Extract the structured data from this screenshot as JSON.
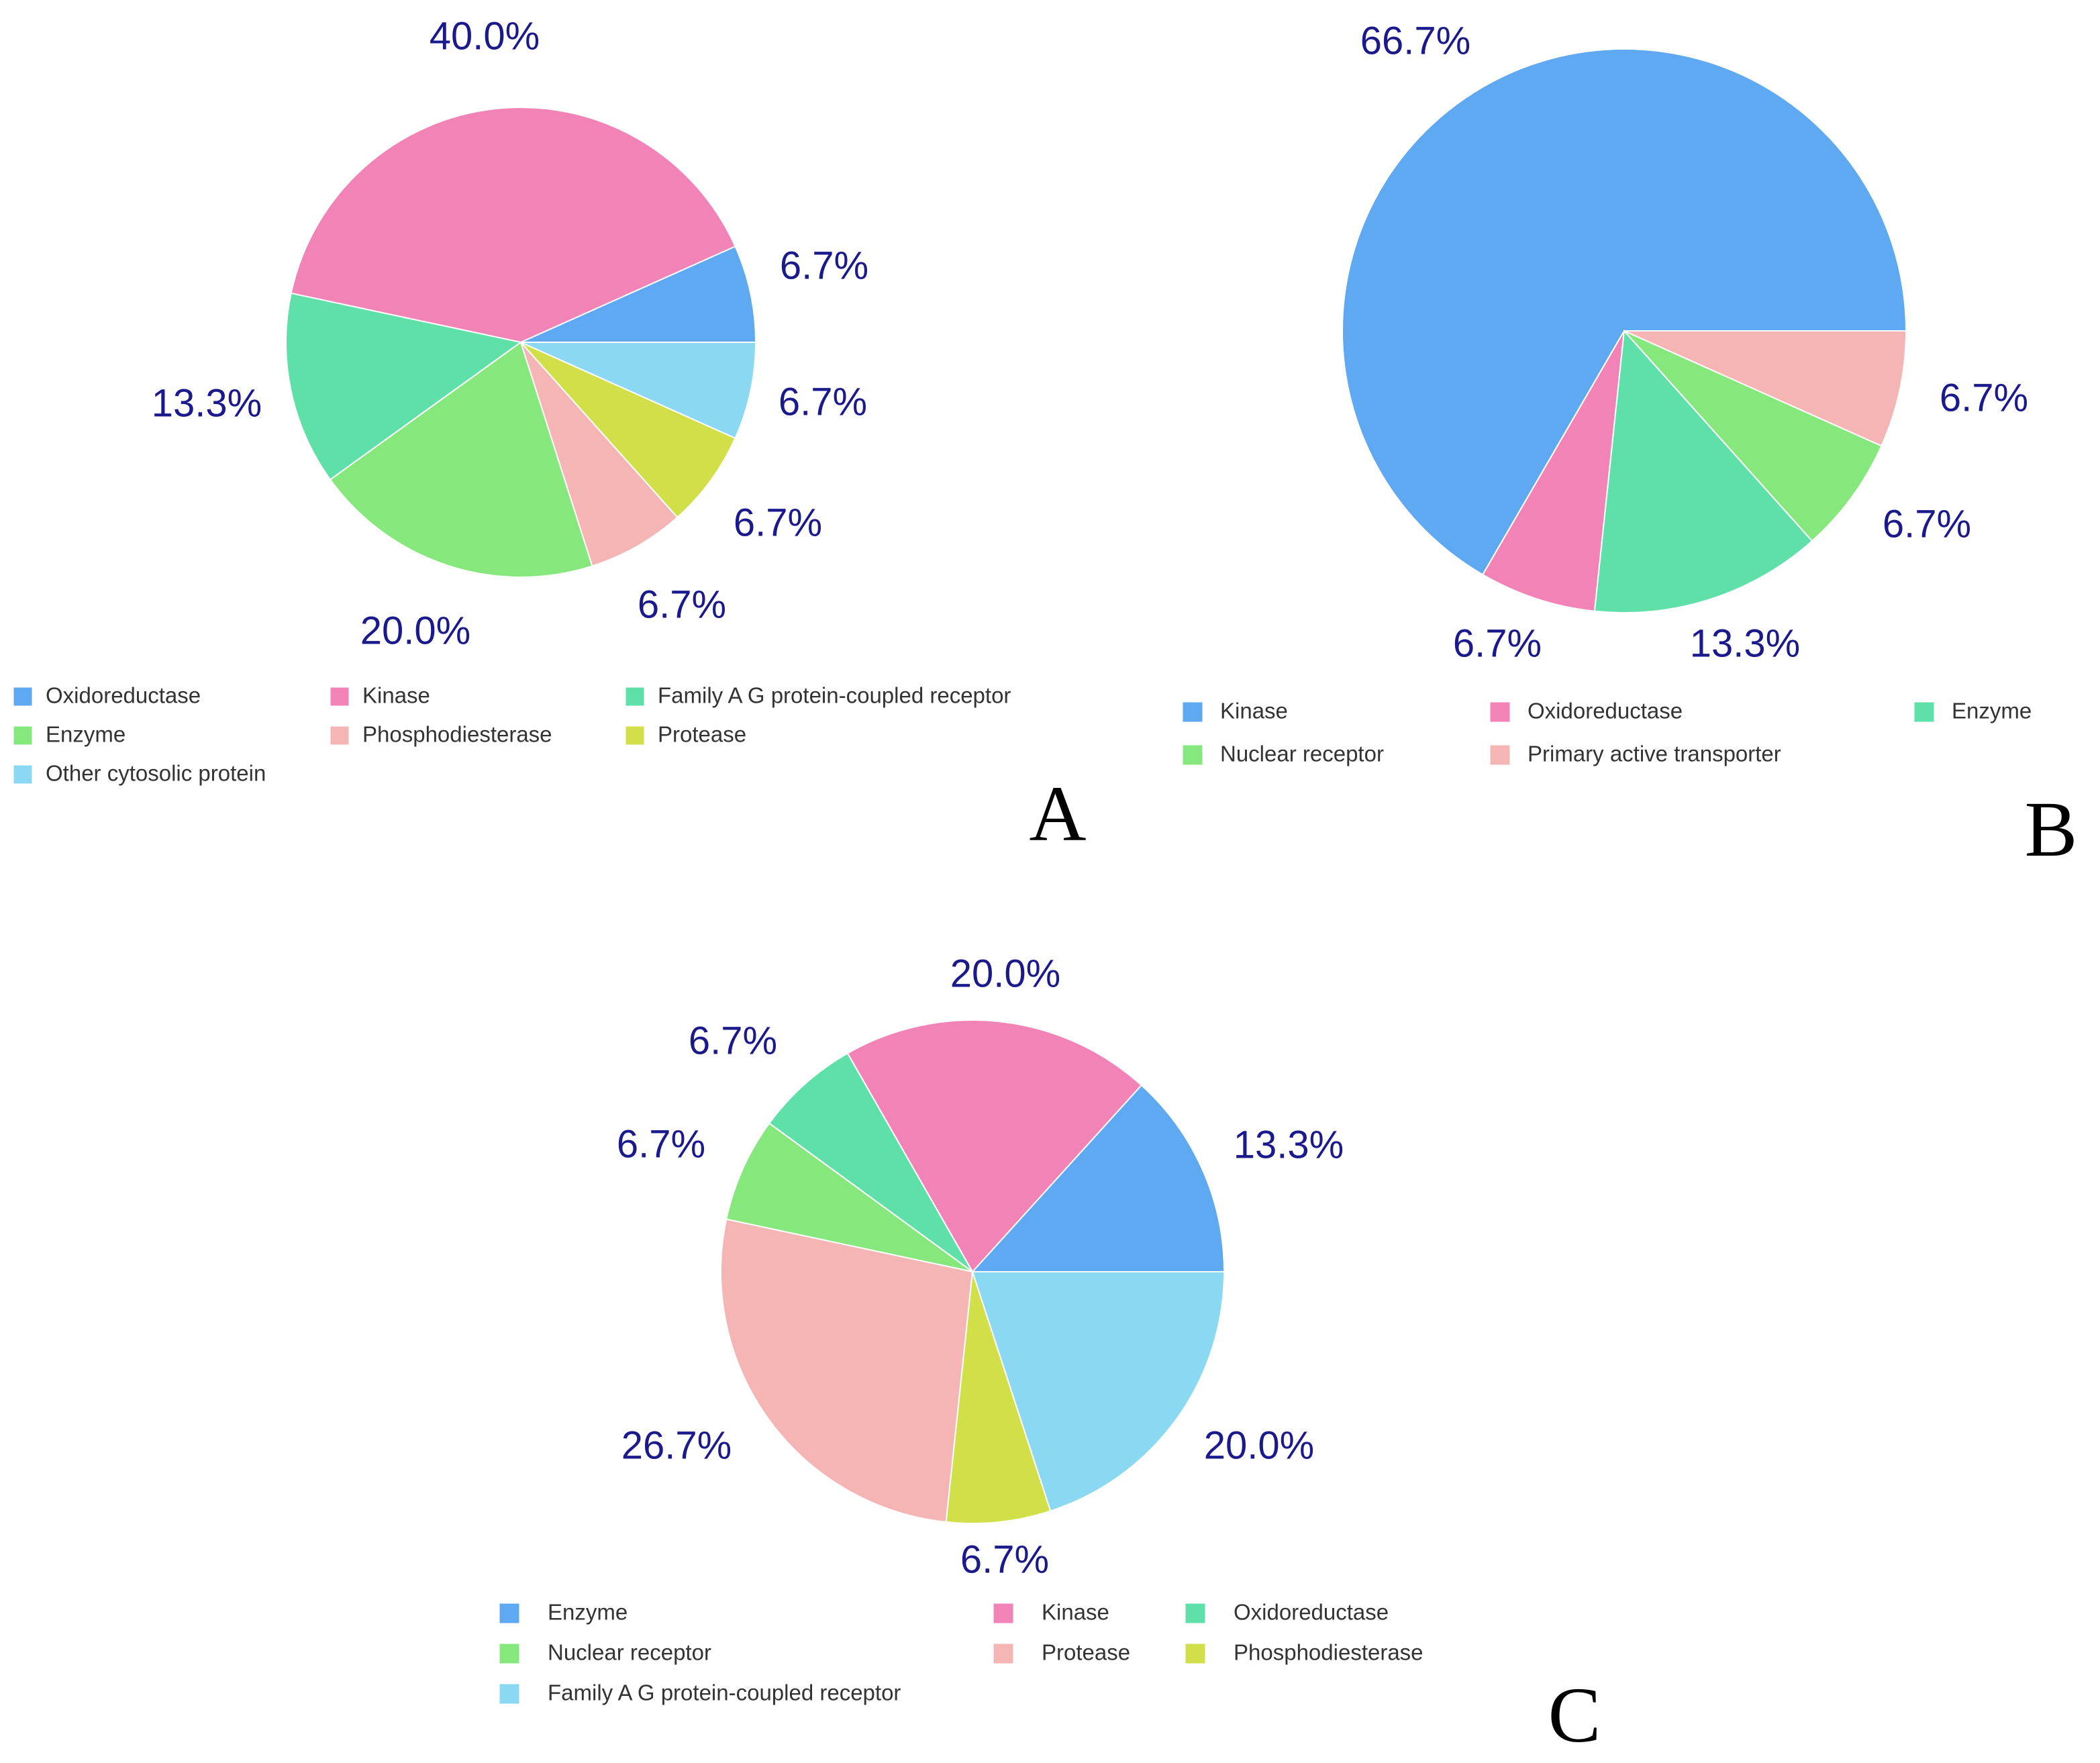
{
  "chart_data": [
    {
      "type": "pie",
      "panel": "A",
      "slices": [
        {
          "label": "Oxidoreductase",
          "value": 6.7,
          "value_label": "6.7%",
          "color": "#5fa8f2"
        },
        {
          "label": "Kinase",
          "value": 40.0,
          "value_label": "40.0%",
          "color": "#f283b7"
        },
        {
          "label": "Family A G protein-coupled receptor",
          "value": 13.3,
          "value_label": "13.3%",
          "color": "#5fe0a8"
        },
        {
          "label": "Enzyme",
          "value": 20.0,
          "value_label": "20.0%",
          "color": "#86e87c"
        },
        {
          "label": "Phosphodiesterase",
          "value": 6.7,
          "value_label": "6.7%",
          "color": "#f5b5b5"
        },
        {
          "label": "Protease",
          "value": 6.7,
          "value_label": "6.7%",
          "color": "#d1df49"
        },
        {
          "label": "Other cytosolic protein",
          "value": 6.7,
          "value_label": "6.7%",
          "color": "#8ad8f2"
        }
      ],
      "legend": [
        [
          "Oxidoreductase",
          "Kinase",
          "Family A G protein-coupled receptor"
        ],
        [
          "Enzyme",
          "Phosphodiesterase",
          "Protease"
        ],
        [
          "Other cytosolic protein"
        ]
      ],
      "legend_colors": {
        "Oxidoreductase": "#5fa8f2",
        "Kinase": "#f283b7",
        "Family A G protein-coupled receptor": "#5fe0a8",
        "Enzyme": "#86e87c",
        "Phosphodiesterase": "#f5b5b5",
        "Protease": "#d1df49",
        "Other cytosolic protein": "#8ad8f2"
      },
      "legend_position": "bottom"
    },
    {
      "type": "pie",
      "panel": "B",
      "slices": [
        {
          "label": "Kinase",
          "value": 66.7,
          "value_label": "66.7%",
          "color": "#5fa8f2"
        },
        {
          "label": "Oxidoreductase",
          "value": 6.7,
          "value_label": "6.7%",
          "color": "#f283b7"
        },
        {
          "label": "Enzyme",
          "value": 13.3,
          "value_label": "13.3%",
          "color": "#5fe0a8"
        },
        {
          "label": "Nuclear receptor",
          "value": 6.7,
          "value_label": "6.7%",
          "color": "#86e87c"
        },
        {
          "label": "Primary active transporter",
          "value": 6.7,
          "value_label": "6.7%",
          "color": "#f5b5b5"
        }
      ],
      "legend": [
        [
          "Kinase",
          "Oxidoreductase",
          "Enzyme"
        ],
        [
          "Nuclear receptor",
          "Primary active transporter"
        ]
      ],
      "legend_colors": {
        "Kinase": "#5fa8f2",
        "Oxidoreductase": "#f283b7",
        "Enzyme": "#5fe0a8",
        "Nuclear receptor": "#86e87c",
        "Primary active transporter": "#f5b5b5"
      },
      "legend_position": "bottom"
    },
    {
      "type": "pie",
      "panel": "C",
      "slices": [
        {
          "label": "Enzyme",
          "value": 13.3,
          "value_label": "13.3%",
          "color": "#5fa8f2"
        },
        {
          "label": "Kinase",
          "value": 20.0,
          "value_label": "20.0%",
          "color": "#f283b7"
        },
        {
          "label": "Oxidoreductase",
          "value": 6.7,
          "value_label": "6.7%",
          "color": "#5fe0a8"
        },
        {
          "label": "Nuclear receptor",
          "value": 6.7,
          "value_label": "6.7%",
          "color": "#86e87c"
        },
        {
          "label": "Protease",
          "value": 26.7,
          "value_label": "26.7%",
          "color": "#f5b5b5"
        },
        {
          "label": "Phosphodiesterase",
          "value": 6.7,
          "value_label": "6.7%",
          "color": "#d1df49"
        },
        {
          "label": "Family A G protein-coupled receptor",
          "value": 20.0,
          "value_label": "20.0%",
          "color": "#8ad8f2"
        }
      ],
      "legend": [
        [
          "Enzyme",
          "Kinase",
          "Oxidoreductase"
        ],
        [
          "Nuclear receptor",
          "Protease",
          "Phosphodiesterase"
        ],
        [
          "Family A G protein-coupled receptor"
        ]
      ],
      "legend_colors": {
        "Enzyme": "#5fa8f2",
        "Kinase": "#f283b7",
        "Oxidoreductase": "#5fe0a8",
        "Nuclear receptor": "#86e87c",
        "Protease": "#f5b5b5",
        "Phosphodiesterase": "#d1df49",
        "Family A G protein-coupled receptor": "#8ad8f2"
      },
      "legend_position": "bottom"
    }
  ]
}
